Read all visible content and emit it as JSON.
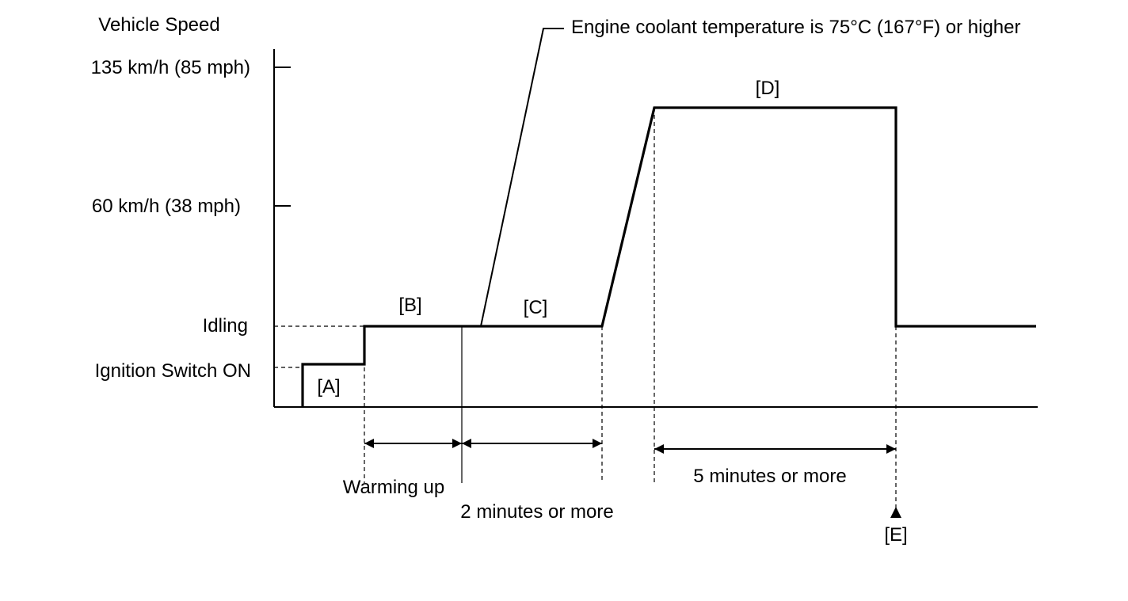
{
  "labels": {
    "y_title": "Vehicle Speed",
    "y_135": "135 km/h (85 mph)",
    "y_60": "60 km/h (38 mph)",
    "y_idle": "Idling",
    "y_ign": "Ignition Switch ON",
    "phase_a": "[A]",
    "phase_b": "[B]",
    "phase_c": "[C]",
    "phase_d": "[D]",
    "phase_e": "[E]",
    "coolant": "Engine coolant temperature is 75°C (167°F) or higher",
    "warming": "Warming up",
    "two_min": "2 minutes or more",
    "five_min": "5 minutes or more"
  },
  "colors": {
    "line": "#000000",
    "background": "#ffffff"
  }
}
